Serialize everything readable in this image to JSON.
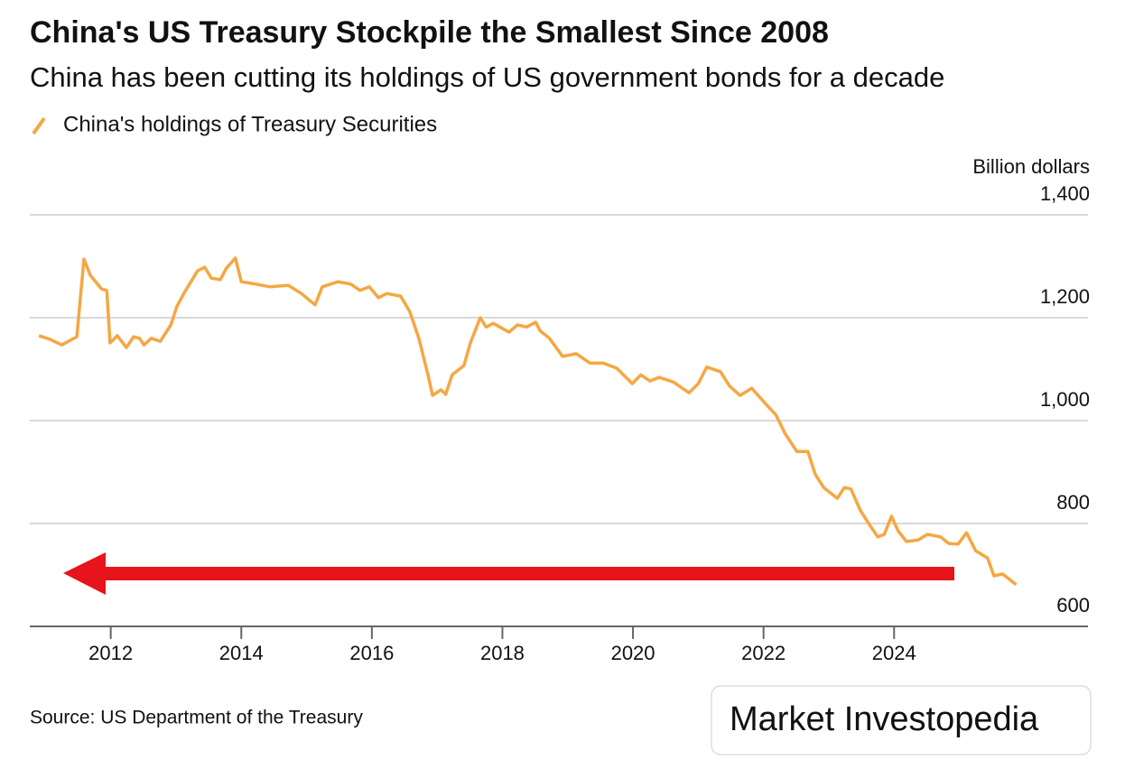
{
  "chart_data": {
    "type": "line",
    "title": "China's US Treasury Stockpile the Smallest Since 2008",
    "subtitle": "China has been cutting its holdings of US government bonds for a decade",
    "y_axis_label": "Billion dollars",
    "source": "Source: US Department of the Treasury",
    "watermark": "Market Investopedia",
    "grid": true,
    "xlim": [
      2010.76,
      2026.97
    ],
    "xticks": [
      2012,
      2014,
      2016,
      2018,
      2020,
      2022,
      2024
    ],
    "ylim": [
      600,
      1400
    ],
    "yticks": [
      600,
      {
        "value": 800,
        "label": "800"
      },
      {
        "value": 1000,
        "label": "1,000"
      },
      {
        "value": 1200,
        "label": "1,200"
      },
      {
        "value": 1400,
        "label": "1,400"
      }
    ],
    "x": [
      2010.9,
      2011.07,
      2011.25,
      2011.48,
      2011.59,
      2011.69,
      2011.86,
      2011.94,
      2011.99,
      2012.1,
      2012.24,
      2012.35,
      2012.44,
      2012.51,
      2012.62,
      2012.76,
      2012.92,
      2013.01,
      2013.12,
      2013.33,
      2013.44,
      2013.54,
      2013.68,
      2013.77,
      2013.91,
      2014.0,
      2014.23,
      2014.44,
      2014.72,
      2014.92,
      2015.13,
      2015.24,
      2015.48,
      2015.68,
      2015.82,
      2015.96,
      2016.1,
      2016.23,
      2016.44,
      2016.58,
      2016.72,
      2016.86,
      2016.93,
      2017.06,
      2017.13,
      2017.23,
      2017.41,
      2017.51,
      2017.66,
      2017.75,
      2017.86,
      2017.96,
      2018.1,
      2018.23,
      2018.37,
      2018.51,
      2018.58,
      2018.72,
      2018.92,
      2019.13,
      2019.34,
      2019.54,
      2019.75,
      2019.99,
      2020.12,
      2020.26,
      2020.4,
      2020.62,
      2020.86,
      2021.0,
      2021.13,
      2021.34,
      2021.48,
      2021.64,
      2021.82,
      2022.0,
      2022.19,
      2022.33,
      2022.51,
      2022.68,
      2022.79,
      2022.92,
      2023.13,
      2023.24,
      2023.34,
      2023.48,
      2023.61,
      2023.75,
      2023.85,
      2023.96,
      2024.06,
      2024.19,
      2024.37,
      2024.51,
      2024.71,
      2024.84,
      2024.98,
      2025.11,
      2025.25,
      2025.43,
      2025.53,
      2025.66,
      2025.87
    ],
    "series": [
      {
        "name": "China's holdings of Treasury Securities",
        "color": "#f5a742",
        "values": [
          1165,
          1158,
          1147,
          1163,
          1314,
          1282,
          1256,
          1253,
          1151,
          1165,
          1142,
          1163,
          1160,
          1147,
          1160,
          1154,
          1186,
          1221,
          1247,
          1291,
          1298,
          1277,
          1274,
          1296,
          1316,
          1270,
          1265,
          1260,
          1263,
          1247,
          1225,
          1260,
          1270,
          1265,
          1253,
          1260,
          1239,
          1247,
          1242,
          1212,
          1160,
          1089,
          1049,
          1060,
          1051,
          1089,
          1107,
          1151,
          1200,
          1182,
          1189,
          1182,
          1172,
          1186,
          1182,
          1191,
          1174,
          1160,
          1125,
          1130,
          1112,
          1112,
          1102,
          1072,
          1089,
          1077,
          1084,
          1075,
          1054,
          1072,
          1104,
          1095,
          1067,
          1049,
          1063,
          1037,
          1011,
          975,
          940,
          940,
          896,
          870,
          849,
          870,
          867,
          826,
          800,
          774,
          779,
          814,
          786,
          765,
          768,
          779,
          774,
          761,
          760,
          782,
          747,
          733,
          698,
          702,
          681
        ]
      }
    ]
  }
}
